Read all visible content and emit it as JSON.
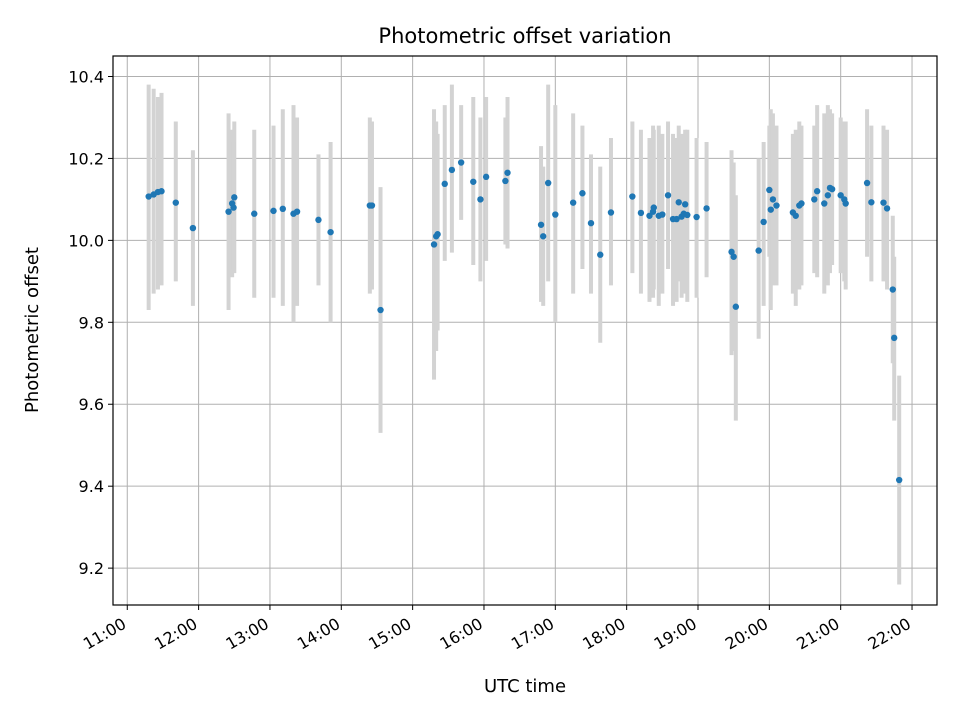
{
  "chart_data": {
    "type": "scatter",
    "title": "Photometric offset variation",
    "xlabel": "UTC time",
    "ylabel": "Photometric offset",
    "x_unit": "hours UTC",
    "xlim": [
      10.8,
      22.35
    ],
    "ylim": [
      9.11,
      10.45
    ],
    "x_ticks": [
      11,
      12,
      13,
      14,
      15,
      16,
      17,
      18,
      19,
      20,
      21,
      22
    ],
    "x_tick_labels": [
      "11:00",
      "12:00",
      "13:00",
      "14:00",
      "15:00",
      "16:00",
      "17:00",
      "18:00",
      "19:00",
      "20:00",
      "21:00",
      "22:00"
    ],
    "y_ticks": [
      9.2,
      9.4,
      9.6,
      9.8,
      10.0,
      10.2,
      10.4
    ],
    "y_tick_labels": [
      "9.2",
      "9.4",
      "9.6",
      "9.8",
      "10.0",
      "10.2",
      "10.4"
    ],
    "grid": true,
    "colors": {
      "points": "#1f77b4",
      "error_bars": "#d3d3d3",
      "grid": "#b0b0b0",
      "axes": "#000000"
    },
    "points": [
      {
        "x": 11.3,
        "y": 10.107,
        "lo": 9.83,
        "hi": 10.38
      },
      {
        "x": 11.37,
        "y": 10.112,
        "lo": 9.87,
        "hi": 10.37
      },
      {
        "x": 11.43,
        "y": 10.118,
        "lo": 9.88,
        "hi": 10.35
      },
      {
        "x": 11.48,
        "y": 10.12,
        "lo": 9.89,
        "hi": 10.36
      },
      {
        "x": 11.68,
        "y": 10.092,
        "lo": 9.9,
        "hi": 10.29
      },
      {
        "x": 11.92,
        "y": 10.03,
        "lo": 9.84,
        "hi": 10.22
      },
      {
        "x": 12.42,
        "y": 10.07,
        "lo": 9.83,
        "hi": 10.31
      },
      {
        "x": 12.47,
        "y": 10.09,
        "lo": 9.91,
        "hi": 10.27
      },
      {
        "x": 12.5,
        "y": 10.105,
        "lo": 9.92,
        "hi": 10.29
      },
      {
        "x": 12.49,
        "y": 10.08,
        "lo": 9.93,
        "hi": 10.24
      },
      {
        "x": 12.78,
        "y": 10.065,
        "lo": 9.86,
        "hi": 10.27
      },
      {
        "x": 13.05,
        "y": 10.072,
        "lo": 9.86,
        "hi": 10.28
      },
      {
        "x": 13.18,
        "y": 10.077,
        "lo": 9.84,
        "hi": 10.32
      },
      {
        "x": 13.33,
        "y": 10.065,
        "lo": 9.8,
        "hi": 10.33
      },
      {
        "x": 13.38,
        "y": 10.07,
        "lo": 9.84,
        "hi": 10.3
      },
      {
        "x": 13.68,
        "y": 10.05,
        "lo": 9.89,
        "hi": 10.21
      },
      {
        "x": 13.85,
        "y": 10.02,
        "lo": 9.8,
        "hi": 10.24
      },
      {
        "x": 14.4,
        "y": 10.085,
        "lo": 9.87,
        "hi": 10.3
      },
      {
        "x": 14.43,
        "y": 10.085,
        "lo": 9.88,
        "hi": 10.29
      },
      {
        "x": 14.55,
        "y": 9.83,
        "lo": 9.53,
        "hi": 10.13
      },
      {
        "x": 15.3,
        "y": 9.99,
        "lo": 9.66,
        "hi": 10.32
      },
      {
        "x": 15.33,
        "y": 10.01,
        "lo": 9.73,
        "hi": 10.29
      },
      {
        "x": 15.35,
        "y": 10.015,
        "lo": 9.78,
        "hi": 10.26
      },
      {
        "x": 15.45,
        "y": 10.138,
        "lo": 9.95,
        "hi": 10.33
      },
      {
        "x": 15.55,
        "y": 10.172,
        "lo": 9.97,
        "hi": 10.38
      },
      {
        "x": 15.68,
        "y": 10.19,
        "lo": 10.05,
        "hi": 10.33
      },
      {
        "x": 15.85,
        "y": 10.143,
        "lo": 9.94,
        "hi": 10.35
      },
      {
        "x": 15.95,
        "y": 10.1,
        "lo": 9.9,
        "hi": 10.3
      },
      {
        "x": 16.03,
        "y": 10.155,
        "lo": 9.95,
        "hi": 10.35
      },
      {
        "x": 16.3,
        "y": 10.145,
        "lo": 9.99,
        "hi": 10.3
      },
      {
        "x": 16.33,
        "y": 10.165,
        "lo": 9.98,
        "hi": 10.35
      },
      {
        "x": 16.8,
        "y": 10.038,
        "lo": 9.85,
        "hi": 10.23
      },
      {
        "x": 16.83,
        "y": 10.01,
        "lo": 9.84,
        "hi": 10.18
      },
      {
        "x": 16.9,
        "y": 10.14,
        "lo": 9.9,
        "hi": 10.38
      },
      {
        "x": 17.0,
        "y": 10.063,
        "lo": 9.8,
        "hi": 10.33
      },
      {
        "x": 17.25,
        "y": 10.092,
        "lo": 9.87,
        "hi": 10.31
      },
      {
        "x": 17.38,
        "y": 10.115,
        "lo": 9.93,
        "hi": 10.28
      },
      {
        "x": 17.5,
        "y": 10.042,
        "lo": 9.87,
        "hi": 10.21
      },
      {
        "x": 17.63,
        "y": 9.965,
        "lo": 9.75,
        "hi": 10.18
      },
      {
        "x": 17.78,
        "y": 10.068,
        "lo": 9.89,
        "hi": 10.25
      },
      {
        "x": 18.08,
        "y": 10.107,
        "lo": 9.92,
        "hi": 10.29
      },
      {
        "x": 18.2,
        "y": 10.067,
        "lo": 9.87,
        "hi": 10.27
      },
      {
        "x": 18.32,
        "y": 10.06,
        "lo": 9.85,
        "hi": 10.25
      },
      {
        "x": 18.37,
        "y": 10.07,
        "lo": 9.86,
        "hi": 10.28
      },
      {
        "x": 18.38,
        "y": 10.08,
        "lo": 9.88,
        "hi": 10.27
      },
      {
        "x": 18.45,
        "y": 10.06,
        "lo": 9.84,
        "hi": 10.28
      },
      {
        "x": 18.5,
        "y": 10.063,
        "lo": 9.87,
        "hi": 10.26
      },
      {
        "x": 18.58,
        "y": 10.11,
        "lo": 9.93,
        "hi": 10.29
      },
      {
        "x": 18.65,
        "y": 10.052,
        "lo": 9.84,
        "hi": 10.26
      },
      {
        "x": 18.7,
        "y": 10.052,
        "lo": 9.85,
        "hi": 10.25
      },
      {
        "x": 18.73,
        "y": 10.093,
        "lo": 9.9,
        "hi": 10.28
      },
      {
        "x": 18.77,
        "y": 10.058,
        "lo": 9.86,
        "hi": 10.26
      },
      {
        "x": 18.8,
        "y": 10.065,
        "lo": 9.87,
        "hi": 10.25
      },
      {
        "x": 18.82,
        "y": 10.088,
        "lo": 9.9,
        "hi": 10.27
      },
      {
        "x": 18.85,
        "y": 10.062,
        "lo": 9.85,
        "hi": 10.27
      },
      {
        "x": 18.98,
        "y": 10.057,
        "lo": 9.86,
        "hi": 10.25
      },
      {
        "x": 19.12,
        "y": 10.078,
        "lo": 9.91,
        "hi": 10.24
      },
      {
        "x": 19.47,
        "y": 9.972,
        "lo": 9.72,
        "hi": 10.22
      },
      {
        "x": 19.5,
        "y": 9.96,
        "lo": 9.73,
        "hi": 10.19
      },
      {
        "x": 19.53,
        "y": 9.838,
        "lo": 9.56,
        "hi": 10.11
      },
      {
        "x": 19.85,
        "y": 9.975,
        "lo": 9.76,
        "hi": 10.2
      },
      {
        "x": 19.92,
        "y": 10.045,
        "lo": 9.84,
        "hi": 10.24
      },
      {
        "x": 20.0,
        "y": 10.123,
        "lo": 9.96,
        "hi": 10.28
      },
      {
        "x": 20.02,
        "y": 10.075,
        "lo": 9.83,
        "hi": 10.32
      },
      {
        "x": 20.05,
        "y": 10.1,
        "lo": 9.89,
        "hi": 10.31
      },
      {
        "x": 20.1,
        "y": 10.085,
        "lo": 9.89,
        "hi": 10.28
      },
      {
        "x": 20.33,
        "y": 10.068,
        "lo": 9.87,
        "hi": 10.26
      },
      {
        "x": 20.37,
        "y": 10.06,
        "lo": 9.84,
        "hi": 10.27
      },
      {
        "x": 20.42,
        "y": 10.085,
        "lo": 9.88,
        "hi": 10.29
      },
      {
        "x": 20.45,
        "y": 10.09,
        "lo": 9.89,
        "hi": 10.28
      },
      {
        "x": 20.63,
        "y": 10.1,
        "lo": 9.92,
        "hi": 10.28
      },
      {
        "x": 20.67,
        "y": 10.12,
        "lo": 9.91,
        "hi": 10.33
      },
      {
        "x": 20.77,
        "y": 10.09,
        "lo": 9.87,
        "hi": 10.31
      },
      {
        "x": 20.82,
        "y": 10.11,
        "lo": 9.89,
        "hi": 10.33
      },
      {
        "x": 20.85,
        "y": 10.128,
        "lo": 9.92,
        "hi": 10.32
      },
      {
        "x": 20.88,
        "y": 10.125,
        "lo": 9.94,
        "hi": 10.31
      },
      {
        "x": 21.0,
        "y": 10.11,
        "lo": 9.92,
        "hi": 10.3
      },
      {
        "x": 21.05,
        "y": 10.1,
        "lo": 9.9,
        "hi": 10.29
      },
      {
        "x": 21.07,
        "y": 10.09,
        "lo": 9.88,
        "hi": 10.29
      },
      {
        "x": 21.37,
        "y": 10.14,
        "lo": 9.96,
        "hi": 10.32
      },
      {
        "x": 21.43,
        "y": 10.093,
        "lo": 9.9,
        "hi": 10.28
      },
      {
        "x": 21.6,
        "y": 10.092,
        "lo": 9.9,
        "hi": 10.28
      },
      {
        "x": 21.65,
        "y": 10.078,
        "lo": 9.88,
        "hi": 10.27
      },
      {
        "x": 21.73,
        "y": 9.88,
        "lo": 9.7,
        "hi": 10.06
      },
      {
        "x": 21.75,
        "y": 9.762,
        "lo": 9.56,
        "hi": 9.96
      },
      {
        "x": 21.82,
        "y": 9.415,
        "lo": 9.16,
        "hi": 9.67
      }
    ]
  }
}
